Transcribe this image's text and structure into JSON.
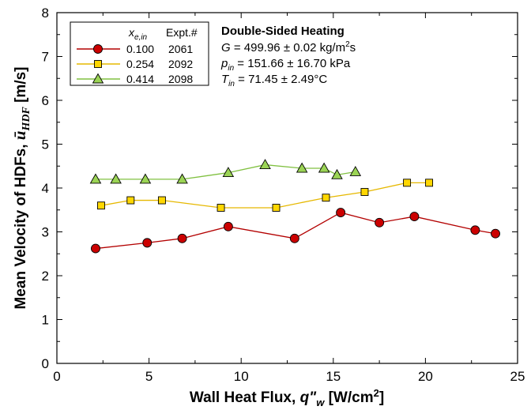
{
  "chart_data": {
    "type": "line",
    "xlabel": {
      "main": "Wall Heat Flux, ",
      "symbol": "q\"",
      "symbol_sub": "w",
      "unit_pre": " [W/cm",
      "unit_sup": "2",
      "unit_post": "]"
    },
    "ylabel": {
      "main": "Mean Velocity of HDFs, ",
      "symbol": "ū",
      "symbol_sub": "HDF",
      "unit": " [m/s]"
    },
    "xlim": [
      0,
      25
    ],
    "ylim": [
      0,
      8
    ],
    "xticks": [
      0,
      5,
      10,
      15,
      20,
      25
    ],
    "yticks": [
      0,
      1,
      2,
      3,
      4,
      5,
      6,
      7,
      8
    ],
    "legend": {
      "location": "top-left",
      "header_x": "x",
      "header_x_sub": "e,in",
      "header_expt": "Expt.#"
    },
    "series": [
      {
        "name": "0.100",
        "expt": "2061",
        "marker": "circle",
        "color": "#b30000",
        "fill": "#cc0000",
        "x": [
          2.1,
          4.9,
          6.8,
          9.3,
          12.9,
          15.4,
          17.5,
          19.4,
          22.7,
          23.8
        ],
        "y": [
          2.62,
          2.75,
          2.85,
          3.12,
          2.85,
          3.44,
          3.21,
          3.35,
          3.04,
          2.96
        ]
      },
      {
        "name": "0.254",
        "expt": "2092",
        "marker": "square",
        "color": "#e6b800",
        "fill": "#ffd700",
        "x": [
          2.4,
          4.0,
          5.7,
          8.9,
          11.9,
          14.6,
          16.7,
          19.0,
          20.2
        ],
        "y": [
          3.6,
          3.72,
          3.72,
          3.55,
          3.55,
          3.78,
          3.91,
          4.12,
          4.12
        ]
      },
      {
        "name": "0.414",
        "expt": "2098",
        "marker": "triangle",
        "color": "#80c040",
        "fill": "#9bd455",
        "x": [
          2.1,
          3.2,
          4.8,
          6.8,
          9.3,
          11.3,
          13.3,
          14.5,
          15.2,
          16.2
        ],
        "y": [
          4.2,
          4.2,
          4.2,
          4.2,
          4.35,
          4.53,
          4.45,
          4.45,
          4.3,
          4.37
        ]
      }
    ],
    "annotation": {
      "title": "Double-Sided Heating",
      "g_symbol": "G",
      "g_text": " = 499.96 ± 0.02 kg/m",
      "g_sup": "2",
      "g_end": "s",
      "p_symbol": "p",
      "p_sub": "in",
      "p_text": " = 151.66 ± 16.70 kPa",
      "t_symbol": "T",
      "t_sub": "in",
      "t_text": " = 71.45 ± 2.49°C"
    }
  }
}
